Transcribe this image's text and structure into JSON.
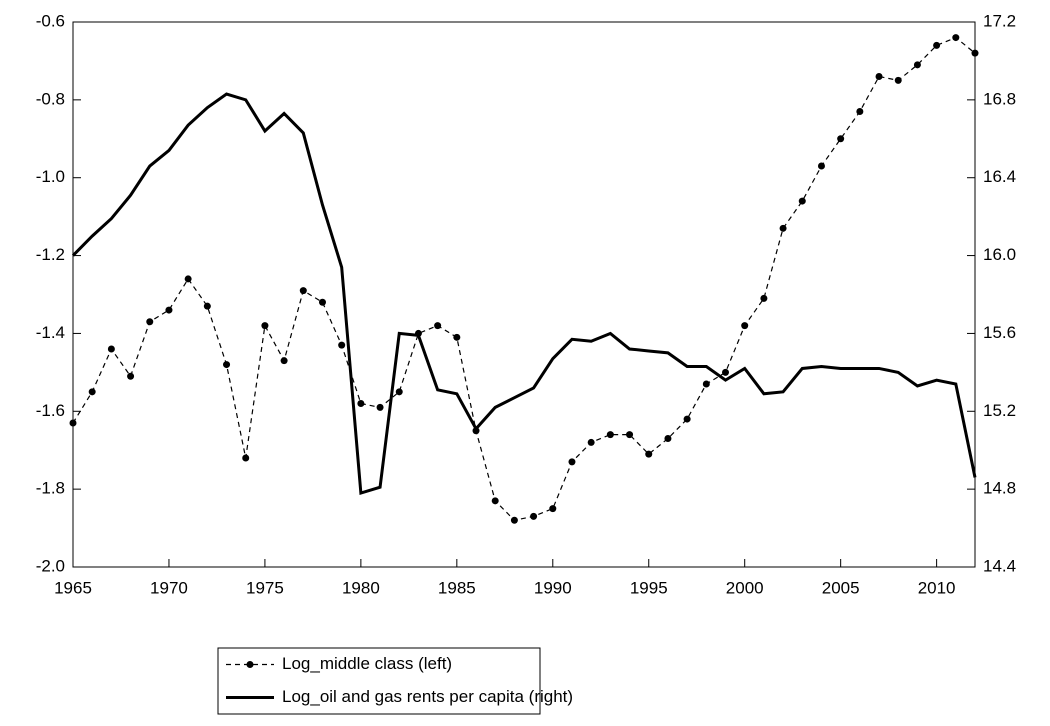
{
  "chart_data": {
    "type": "line",
    "x": [
      1965,
      1966,
      1967,
      1968,
      1969,
      1970,
      1971,
      1972,
      1973,
      1974,
      1975,
      1976,
      1977,
      1978,
      1979,
      1980,
      1981,
      1982,
      1983,
      1984,
      1985,
      1986,
      1987,
      1988,
      1989,
      1990,
      1991,
      1992,
      1993,
      1994,
      1995,
      1996,
      1997,
      1998,
      1999,
      2000,
      2001,
      2002,
      2003,
      2004,
      2005,
      2006,
      2007,
      2008,
      2009,
      2010,
      2011,
      2012
    ],
    "xlim": [
      1965,
      2012
    ],
    "xticks": [
      1965,
      1970,
      1975,
      1980,
      1985,
      1990,
      1995,
      2000,
      2005,
      2010
    ],
    "ylim": [
      -2.0,
      -0.6
    ],
    "yticks": [
      {
        "value": -2.0,
        "label": "-2.0"
      },
      -1.8,
      -1.6,
      -1.4,
      -1.2,
      {
        "value": -1.0,
        "label": "-1.0"
      },
      -0.8,
      -0.6
    ],
    "y2lim": [
      14.4,
      17.2
    ],
    "y2ticks": [
      14.4,
      14.8,
      15.2,
      15.6,
      {
        "value": 16.0,
        "label": "16.0"
      },
      16.4,
      16.8,
      17.2
    ],
    "series": [
      {
        "name": "Log_middle class (left)",
        "color": "#000000",
        "style": "dashed",
        "marker": "circle",
        "axis": "y",
        "values": [
          -1.63,
          -1.55,
          -1.44,
          -1.51,
          -1.37,
          -1.34,
          -1.26,
          -1.33,
          -1.48,
          -1.72,
          -1.38,
          -1.47,
          -1.29,
          -1.32,
          -1.43,
          -1.58,
          -1.59,
          -1.55,
          -1.4,
          -1.38,
          -1.41,
          -1.65,
          -1.83,
          -1.88,
          -1.87,
          -1.85,
          -1.73,
          -1.68,
          -1.66,
          -1.66,
          -1.71,
          -1.67,
          -1.62,
          -1.53,
          -1.5,
          -1.38,
          -1.31,
          -1.13,
          -1.06,
          -0.97,
          -0.9,
          -0.83,
          -0.74,
          -0.75,
          -0.71,
          -0.66,
          -0.64,
          -0.68
        ]
      },
      {
        "name": "Log_oil and gas rents per capita (right)",
        "color": "#000000",
        "style": "solid",
        "axis": "y2",
        "values": [
          16.0,
          16.1,
          16.19,
          16.31,
          16.46,
          16.54,
          16.67,
          16.76,
          16.83,
          16.8,
          16.64,
          16.73,
          16.63,
          16.26,
          15.94,
          14.78,
          14.81,
          15.6,
          15.59,
          15.31,
          15.29,
          15.11,
          15.22,
          15.27,
          15.32,
          15.47,
          15.57,
          15.56,
          15.6,
          15.52,
          15.51,
          15.5,
          15.43,
          15.43,
          15.36,
          15.42,
          15.29,
          15.3,
          15.42,
          15.43,
          15.42,
          15.42,
          15.42,
          15.4,
          15.33,
          15.36,
          15.34,
          14.86
        ]
      }
    ],
    "legend": "bottom"
  }
}
